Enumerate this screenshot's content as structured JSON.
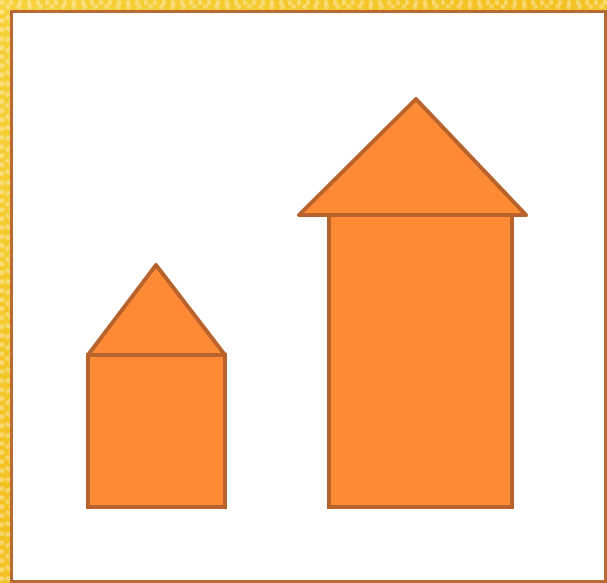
{
  "colors": {
    "frame_background": "#f5c928",
    "canvas_background": "#ffffff",
    "canvas_border": "#b86a32",
    "shape_fill": "#ff8a35",
    "shape_stroke": "#b8632c"
  },
  "shapes": [
    {
      "name": "small-house",
      "roof": "triangle",
      "body": "square"
    },
    {
      "name": "tall-house",
      "roof": "triangle",
      "body": "rectangle"
    }
  ]
}
